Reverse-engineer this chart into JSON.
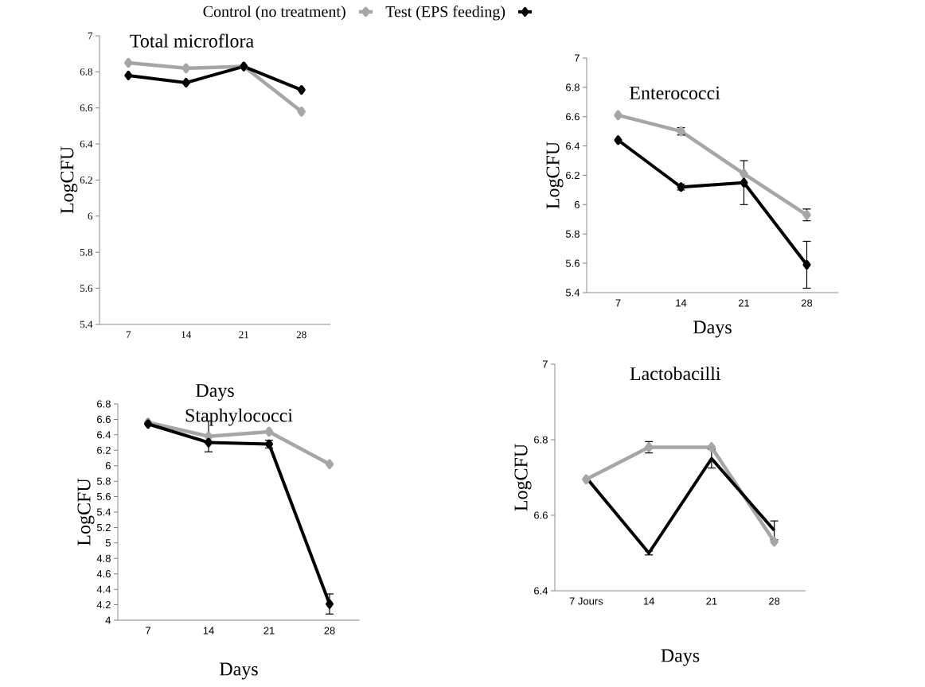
{
  "chart_data": [
    {
      "type": "line",
      "title": "Total microflora",
      "xlabel": "Days",
      "ylabel": "LogCFU",
      "categories": [
        "7",
        "14",
        "21",
        "28"
      ],
      "ylim": [
        5.4,
        7
      ],
      "yticks": [
        5.4,
        5.6,
        5.8,
        6,
        6.2,
        6.4,
        6.6,
        6.8,
        7
      ],
      "legend": "top",
      "marker": "diamond",
      "grid": false,
      "series": [
        {
          "name": "Control (no treatment)",
          "color": "#a6a6a6",
          "values": [
            6.85,
            6.82,
            6.83,
            6.58
          ]
        },
        {
          "name": "Test (EPS feeding)",
          "color": "#000000",
          "values": [
            6.78,
            6.74,
            6.83,
            6.7
          ]
        }
      ]
    },
    {
      "type": "line",
      "title": "Enterococci",
      "xlabel": "Days",
      "ylabel": "LogCFU",
      "categories": [
        "7",
        "14",
        "21",
        "28"
      ],
      "ylim": [
        5.4,
        7
      ],
      "yticks": [
        5.4,
        5.6,
        5.8,
        6,
        6.2,
        6.4,
        6.6,
        6.8,
        7
      ],
      "marker": "diamond",
      "grid": false,
      "series": [
        {
          "color": "#a6a6a6",
          "values": [
            6.61,
            6.5,
            6.21,
            5.93
          ],
          "errors": [
            null,
            0.025,
            null,
            0.04
          ]
        },
        {
          "color": "#000000",
          "values": [
            6.44,
            6.12,
            6.15,
            5.59
          ],
          "errors": [
            null,
            0.02,
            0.15,
            0.16
          ]
        }
      ]
    },
    {
      "type": "line",
      "title": "Staphylococci",
      "xlabel": "Days",
      "ylabel": "LogCFU",
      "categories": [
        "7",
        "14",
        "21",
        "28"
      ],
      "ylim": [
        4,
        6.8
      ],
      "yticks": [
        4,
        4.2,
        4.4,
        4.6,
        4.8,
        5,
        5.2,
        5.4,
        5.6,
        5.8,
        6,
        6.2,
        6.4,
        6.6,
        6.8
      ],
      "marker": "diamond",
      "grid": false,
      "series": [
        {
          "color": "#a6a6a6",
          "values": [
            6.56,
            6.38,
            6.44,
            6.02
          ],
          "errors": [
            null,
            0.2,
            null,
            null
          ]
        },
        {
          "color": "#000000",
          "values": [
            6.54,
            6.3,
            6.28,
            4.21
          ],
          "errors": [
            null,
            null,
            0.05,
            0.13
          ]
        }
      ]
    },
    {
      "type": "line",
      "title": "Lactobacilli",
      "xlabel": "Days",
      "ylabel": "LogCFU",
      "categories": [
        "7 Jours",
        "14",
        "21",
        "28"
      ],
      "ylim": [
        6.4,
        7
      ],
      "yticks": [
        6.4,
        6.6,
        6.8,
        7
      ],
      "grid": false,
      "series": [
        {
          "color": "#a6a6a6",
          "values": [
            6.695,
            6.78,
            6.78,
            6.53
          ],
          "errors": [
            null,
            0.015,
            null,
            null
          ],
          "marker": "diamond"
        },
        {
          "color": "#000000",
          "values": [
            6.7,
            6.5,
            6.75,
            6.56
          ],
          "errors": [
            null,
            0.005,
            0.025,
            0.025
          ],
          "marker": "none"
        }
      ]
    }
  ]
}
